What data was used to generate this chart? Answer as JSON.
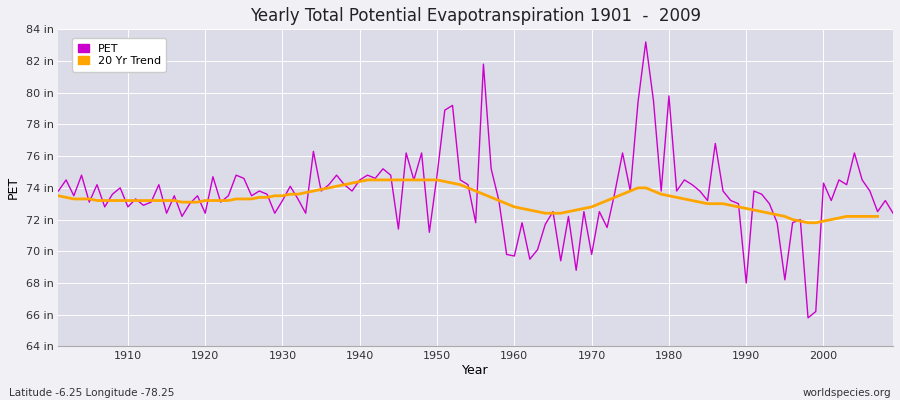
{
  "title": "Yearly Total Potential Evapotranspiration 1901  -  2009",
  "ylabel": "PET",
  "xlabel": "Year",
  "subtitle_left": "Latitude -6.25 Longitude -78.25",
  "subtitle_right": "worldspecies.org",
  "pet_color": "#cc00cc",
  "trend_color": "#FFA500",
  "fig_background": "#f0f0f5",
  "plot_background": "#dcdce8",
  "ylim": [
    64,
    84
  ],
  "ytick_labels": [
    "64 in",
    "66 in",
    "68 in",
    "70 in",
    "72 in",
    "74 in",
    "76 in",
    "78 in",
    "80 in",
    "82 in",
    "84 in"
  ],
  "ytick_values": [
    64,
    66,
    68,
    70,
    72,
    74,
    76,
    78,
    80,
    82,
    84
  ],
  "years": [
    1901,
    1902,
    1903,
    1904,
    1905,
    1906,
    1907,
    1908,
    1909,
    1910,
    1911,
    1912,
    1913,
    1914,
    1915,
    1916,
    1917,
    1918,
    1919,
    1920,
    1921,
    1922,
    1923,
    1924,
    1925,
    1926,
    1927,
    1928,
    1929,
    1930,
    1931,
    1932,
    1933,
    1934,
    1935,
    1936,
    1937,
    1938,
    1939,
    1940,
    1941,
    1942,
    1943,
    1944,
    1945,
    1946,
    1947,
    1948,
    1949,
    1950,
    1951,
    1952,
    1953,
    1954,
    1955,
    1956,
    1957,
    1958,
    1959,
    1960,
    1961,
    1962,
    1963,
    1964,
    1965,
    1966,
    1967,
    1968,
    1969,
    1970,
    1971,
    1972,
    1973,
    1974,
    1975,
    1976,
    1977,
    1978,
    1979,
    1980,
    1981,
    1982,
    1983,
    1984,
    1985,
    1986,
    1987,
    1988,
    1989,
    1990,
    1991,
    1992,
    1993,
    1994,
    1995,
    1996,
    1997,
    1998,
    1999,
    2000,
    2001,
    2002,
    2003,
    2004,
    2005,
    2006,
    2007,
    2008,
    2009
  ],
  "pet_values": [
    73.8,
    74.5,
    73.5,
    74.8,
    73.1,
    74.2,
    72.8,
    73.6,
    74.0,
    72.8,
    73.3,
    72.9,
    73.1,
    74.2,
    72.4,
    73.5,
    72.2,
    73.0,
    73.5,
    72.4,
    74.7,
    73.1,
    73.5,
    74.8,
    74.6,
    73.5,
    73.8,
    73.6,
    72.4,
    73.2,
    74.1,
    73.3,
    72.4,
    76.3,
    73.8,
    74.2,
    74.8,
    74.2,
    73.8,
    74.5,
    74.8,
    74.6,
    75.2,
    74.8,
    71.4,
    76.2,
    74.5,
    76.2,
    71.2,
    74.8,
    78.9,
    79.2,
    74.5,
    74.2,
    71.8,
    81.8,
    75.2,
    73.2,
    69.8,
    69.7,
    71.8,
    69.5,
    70.1,
    71.7,
    72.5,
    69.4,
    72.2,
    68.8,
    72.5,
    69.8,
    72.5,
    71.5,
    73.7,
    76.2,
    73.8,
    79.4,
    83.2,
    79.5,
    73.8,
    79.8,
    73.8,
    74.5,
    74.2,
    73.8,
    73.2,
    76.8,
    73.8,
    73.2,
    73.0,
    68.0,
    73.8,
    73.6,
    73.0,
    71.8,
    68.2,
    71.8,
    72.0,
    65.8,
    66.2,
    74.3,
    73.2,
    74.5,
    74.2,
    76.2,
    74.5,
    73.8,
    72.5,
    73.2,
    72.4
  ],
  "trend_values": [
    73.5,
    73.4,
    73.3,
    73.3,
    73.3,
    73.2,
    73.2,
    73.2,
    73.2,
    73.2,
    73.2,
    73.2,
    73.2,
    73.2,
    73.2,
    73.2,
    73.1,
    73.1,
    73.1,
    73.2,
    73.2,
    73.2,
    73.2,
    73.3,
    73.3,
    73.3,
    73.4,
    73.4,
    73.5,
    73.5,
    73.6,
    73.6,
    73.7,
    73.8,
    73.9,
    74.0,
    74.1,
    74.2,
    74.3,
    74.4,
    74.5,
    74.5,
    74.5,
    74.5,
    74.5,
    74.5,
    74.5,
    74.5,
    74.5,
    74.5,
    74.4,
    74.3,
    74.2,
    74.0,
    73.8,
    73.6,
    73.4,
    73.2,
    73.0,
    72.8,
    72.7,
    72.6,
    72.5,
    72.4,
    72.4,
    72.4,
    72.5,
    72.6,
    72.7,
    72.8,
    73.0,
    73.2,
    73.4,
    73.6,
    73.8,
    74.0,
    74.0,
    73.8,
    73.6,
    73.5,
    73.4,
    73.3,
    73.2,
    73.1,
    73.0,
    73.0,
    73.0,
    72.9,
    72.8,
    72.7,
    72.6,
    72.5,
    72.4,
    72.3,
    72.2,
    72.0,
    71.9,
    71.8,
    71.8,
    71.9,
    72.0,
    72.1,
    72.2,
    72.2,
    72.2,
    72.2,
    72.2,
    null,
    null
  ]
}
